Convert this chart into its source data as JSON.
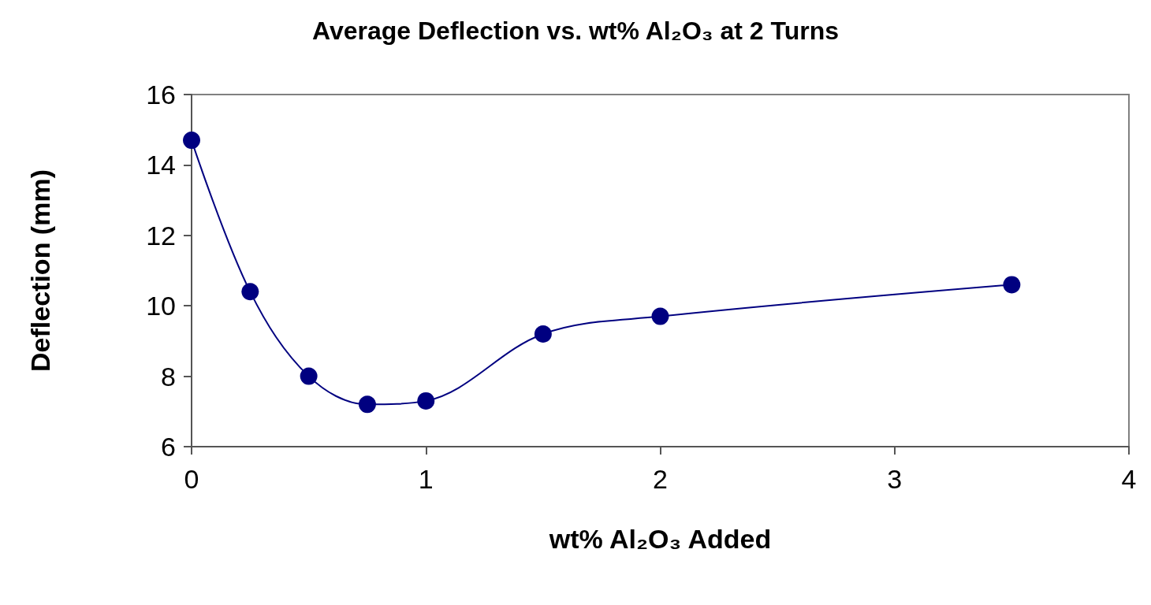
{
  "chart_data": {
    "type": "line",
    "title": "Average Deflection vs. wt% Al₂O₃ at 2 Turns",
    "xlabel": "wt% Al₂O₃ Added",
    "ylabel": "Deflection (mm)",
    "x": [
      0,
      0.25,
      0.5,
      0.75,
      1,
      1.5,
      2,
      3.5
    ],
    "series": [
      {
        "color": "#000080",
        "values": [
          14.7,
          10.4,
          8.0,
          7.2,
          7.3,
          9.2,
          9.7,
          10.6
        ]
      }
    ],
    "xlim": [
      0,
      4
    ],
    "xticks": [
      0,
      1,
      2,
      3,
      4
    ],
    "ylim": [
      6,
      16
    ],
    "yticks": [
      6,
      8,
      10,
      12,
      14,
      16
    ],
    "marker": "circle",
    "line_style": "solid"
  }
}
